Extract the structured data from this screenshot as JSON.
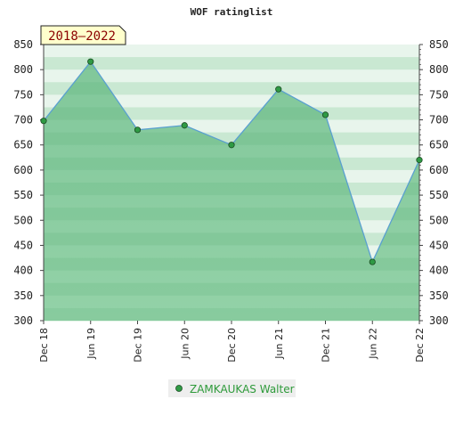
{
  "chart_data": {
    "type": "area",
    "title": "WOF ratinglist",
    "period_label": "2018—2022",
    "categories": [
      "Dec 18",
      "Jun 19",
      "Dec 19",
      "Jun 20",
      "Dec 20",
      "Jun 21",
      "Dec 21",
      "Jun 22",
      "Dec 22"
    ],
    "series": [
      {
        "name": "ZAMKAUKAS Walter",
        "values": [
          698,
          816,
          680,
          689,
          650,
          761,
          710,
          417,
          620
        ]
      }
    ],
    "ylim": [
      300,
      850
    ],
    "yticks": [
      300,
      350,
      400,
      450,
      500,
      550,
      600,
      650,
      700,
      750,
      800,
      850
    ],
    "xlabel": "",
    "ylabel": "",
    "legend_position": "bottom-center",
    "colors": {
      "line": "#5aa0d0",
      "marker": "#2f9a44",
      "area": "#78c490",
      "band_light": "#e8f5ec",
      "band_dark": "#c9e8d2",
      "title": "#222222",
      "period_text": "#8b0000",
      "period_bg": "#ffffcc",
      "legend_text": "#2e9a3a"
    }
  }
}
